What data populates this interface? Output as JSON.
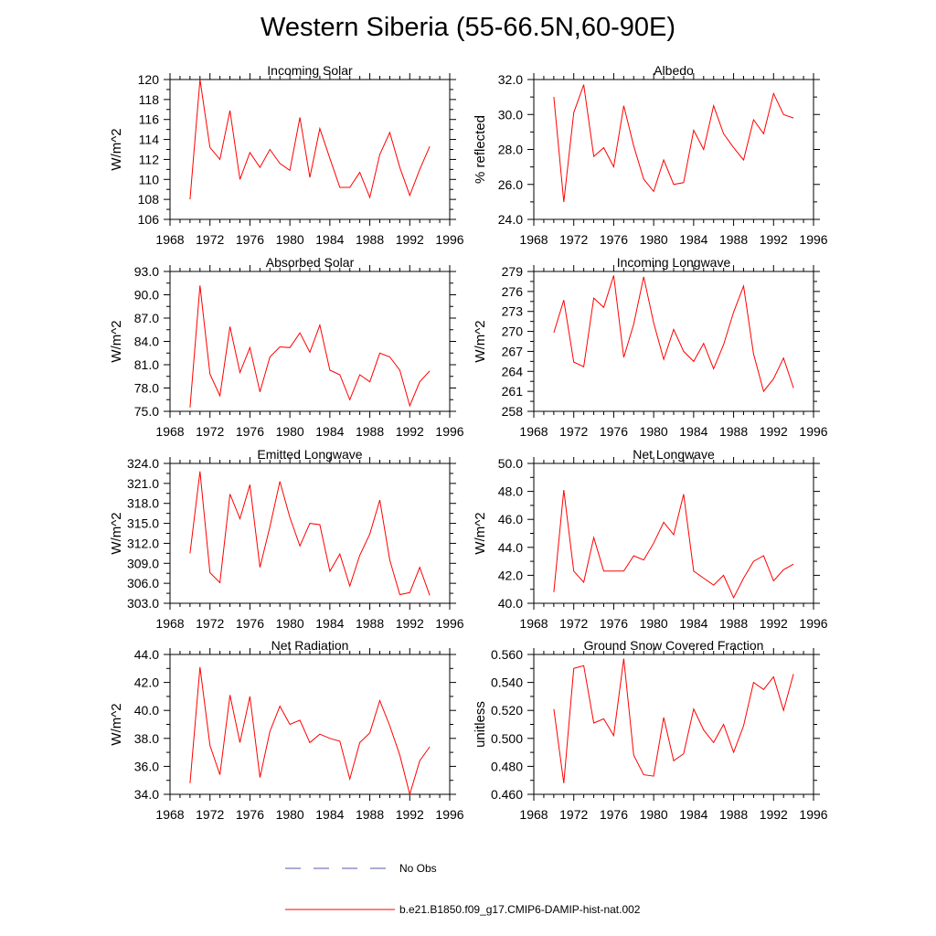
{
  "title": "Western Siberia (55-66.5N,60-90E)",
  "chart_data": [
    {
      "type": "line",
      "title": "Incoming Solar",
      "ylabel": "W/m^2",
      "xlim": [
        1968,
        1996
      ],
      "ylim": [
        106,
        120
      ],
      "xticks": [
        "1968",
        "1972",
        "1976",
        "1980",
        "1984",
        "1988",
        "1992",
        "1996"
      ],
      "yticks": [
        "106",
        "108",
        "110",
        "112",
        "114",
        "116",
        "118",
        "120"
      ],
      "x": [
        1970,
        1971,
        1972,
        1973,
        1974,
        1975,
        1976,
        1977,
        1978,
        1979,
        1980,
        1981,
        1982,
        1983,
        1984,
        1985,
        1986,
        1987,
        1988,
        1989,
        1990,
        1991,
        1992,
        1993,
        1994
      ],
      "series": [
        {
          "name": "b.e21.B1850.f09_g17.CMIP6-DAMIP-hist-nat.002",
          "values": [
            108.0,
            120.0,
            113.2,
            112.0,
            116.9,
            110.0,
            112.7,
            111.2,
            113.0,
            111.6,
            110.9,
            116.2,
            110.2,
            115.1,
            112.1,
            109.2,
            109.2,
            110.7,
            108.2,
            112.5,
            114.7,
            111.2,
            108.4,
            111.0,
            113.3
          ]
        }
      ]
    },
    {
      "type": "line",
      "title": "Albedo",
      "ylabel": "% reflected",
      "xlim": [
        1968,
        1996
      ],
      "ylim": [
        24,
        32
      ],
      "xticks": [
        "1968",
        "1972",
        "1976",
        "1980",
        "1984",
        "1988",
        "1992",
        "1996"
      ],
      "yticks": [
        "24.0",
        "26.0",
        "28.0",
        "30.0",
        "32.0"
      ],
      "x": [
        1970,
        1971,
        1972,
        1973,
        1974,
        1975,
        1976,
        1977,
        1978,
        1979,
        1980,
        1981,
        1982,
        1983,
        1984,
        1985,
        1986,
        1987,
        1988,
        1989,
        1990,
        1991,
        1992,
        1993,
        1994
      ],
      "series": [
        {
          "name": "b.e21.B1850.f09_g17.CMIP6-DAMIP-hist-nat.002",
          "values": [
            31.0,
            25.0,
            30.1,
            31.7,
            27.6,
            28.1,
            27.0,
            30.5,
            28.2,
            26.3,
            25.6,
            27.4,
            26.0,
            26.1,
            29.1,
            28.0,
            30.5,
            28.9,
            28.1,
            27.4,
            29.7,
            28.9,
            31.2,
            30.0,
            29.8
          ]
        }
      ]
    },
    {
      "type": "line",
      "title": "Absorbed Solar",
      "ylabel": "W/m^2",
      "xlim": [
        1968,
        1996
      ],
      "ylim": [
        75,
        93
      ],
      "xticks": [
        "1968",
        "1972",
        "1976",
        "1980",
        "1984",
        "1988",
        "1992",
        "1996"
      ],
      "yticks": [
        "75.0",
        "78.0",
        "81.0",
        "84.0",
        "87.0",
        "90.0",
        "93.0"
      ],
      "x": [
        1970,
        1971,
        1972,
        1973,
        1974,
        1975,
        1976,
        1977,
        1978,
        1979,
        1980,
        1981,
        1982,
        1983,
        1984,
        1985,
        1986,
        1987,
        1988,
        1989,
        1990,
        1991,
        1992,
        1993,
        1994
      ],
      "series": [
        {
          "name": "b.e21.B1850.f09_g17.CMIP6-DAMIP-hist-nat.002",
          "values": [
            75.5,
            91.2,
            79.8,
            77.0,
            85.9,
            80.0,
            83.2,
            77.5,
            82.0,
            83.3,
            83.2,
            85.1,
            82.6,
            86.1,
            80.3,
            79.7,
            76.5,
            79.7,
            78.8,
            82.5,
            82.0,
            80.3,
            75.7,
            78.8,
            80.2
          ]
        }
      ]
    },
    {
      "type": "line",
      "title": "Incoming Longwave",
      "ylabel": "W/m^2",
      "xlim": [
        1968,
        1996
      ],
      "ylim": [
        258,
        279
      ],
      "xticks": [
        "1968",
        "1972",
        "1976",
        "1980",
        "1984",
        "1988",
        "1992",
        "1996"
      ],
      "yticks": [
        "258",
        "261",
        "264",
        "267",
        "270",
        "273",
        "276",
        "279"
      ],
      "x": [
        1970,
        1971,
        1972,
        1973,
        1974,
        1975,
        1976,
        1977,
        1978,
        1979,
        1980,
        1981,
        1982,
        1983,
        1984,
        1985,
        1986,
        1987,
        1988,
        1989,
        1990,
        1991,
        1992,
        1993,
        1994
      ],
      "series": [
        {
          "name": "b.e21.B1850.f09_g17.CMIP6-DAMIP-hist-nat.002",
          "values": [
            269.8,
            274.7,
            265.4,
            264.7,
            275.0,
            273.6,
            278.4,
            266.1,
            271.1,
            278.2,
            271.3,
            265.8,
            270.3,
            267.0,
            265.5,
            268.2,
            264.4,
            268.0,
            272.9,
            276.8,
            266.6,
            261.0,
            262.9,
            266.0,
            261.5
          ]
        }
      ]
    },
    {
      "type": "line",
      "title": "Emitted Longwave",
      "ylabel": "W/m^2",
      "xlim": [
        1968,
        1996
      ],
      "ylim": [
        303,
        324
      ],
      "xticks": [
        "1968",
        "1972",
        "1976",
        "1980",
        "1984",
        "1988",
        "1992",
        "1996"
      ],
      "yticks": [
        "303.0",
        "306.0",
        "309.0",
        "312.0",
        "315.0",
        "318.0",
        "321.0",
        "324.0"
      ],
      "x": [
        1970,
        1971,
        1972,
        1973,
        1974,
        1975,
        1976,
        1977,
        1978,
        1979,
        1980,
        1981,
        1982,
        1983,
        1984,
        1985,
        1986,
        1987,
        1988,
        1989,
        1990,
        1991,
        1992,
        1993,
        1994
      ],
      "series": [
        {
          "name": "b.e21.B1850.f09_g17.CMIP6-DAMIP-hist-nat.002",
          "values": [
            310.5,
            322.8,
            307.6,
            306.1,
            319.4,
            315.7,
            320.8,
            308.4,
            314.5,
            321.3,
            315.9,
            311.6,
            315.0,
            314.8,
            307.8,
            310.4,
            305.6,
            310.2,
            313.4,
            318.5,
            309.5,
            304.3,
            304.6,
            308.4,
            304.2
          ]
        }
      ]
    },
    {
      "type": "line",
      "title": "Net Longwave",
      "ylabel": "W/m^2",
      "xlim": [
        1968,
        1996
      ],
      "ylim": [
        40,
        50
      ],
      "xticks": [
        "1968",
        "1972",
        "1976",
        "1980",
        "1984",
        "1988",
        "1992",
        "1996"
      ],
      "yticks": [
        "40.0",
        "42.0",
        "44.0",
        "46.0",
        "48.0",
        "50.0"
      ],
      "x": [
        1970,
        1971,
        1972,
        1973,
        1974,
        1975,
        1976,
        1977,
        1978,
        1979,
        1980,
        1981,
        1982,
        1983,
        1984,
        1985,
        1986,
        1987,
        1988,
        1989,
        1990,
        1991,
        1992,
        1993,
        1994
      ],
      "series": [
        {
          "name": "b.e21.B1850.f09_g17.CMIP6-DAMIP-hist-nat.002",
          "values": [
            40.8,
            48.1,
            42.3,
            41.5,
            44.7,
            42.3,
            42.3,
            42.3,
            43.4,
            43.1,
            44.3,
            45.8,
            44.9,
            47.8,
            42.3,
            41.8,
            41.3,
            42.0,
            40.4,
            41.8,
            43.0,
            43.4,
            41.6,
            42.4,
            42.8
          ]
        }
      ]
    },
    {
      "type": "line",
      "title": "Net Radiation",
      "ylabel": "W/m^2",
      "xlim": [
        1968,
        1996
      ],
      "ylim": [
        34,
        44
      ],
      "xticks": [
        "1968",
        "1972",
        "1976",
        "1980",
        "1984",
        "1988",
        "1992",
        "1996"
      ],
      "yticks": [
        "34.0",
        "36.0",
        "38.0",
        "40.0",
        "42.0",
        "44.0"
      ],
      "x": [
        1970,
        1971,
        1972,
        1973,
        1974,
        1975,
        1976,
        1977,
        1978,
        1979,
        1980,
        1981,
        1982,
        1983,
        1984,
        1985,
        1986,
        1987,
        1988,
        1989,
        1990,
        1991,
        1992,
        1993,
        1994
      ],
      "series": [
        {
          "name": "b.e21.B1850.f09_g17.CMIP6-DAMIP-hist-nat.002",
          "values": [
            34.8,
            43.1,
            37.5,
            35.4,
            41.1,
            37.7,
            41.0,
            35.2,
            38.5,
            40.3,
            39.0,
            39.3,
            37.7,
            38.3,
            38.0,
            37.8,
            35.1,
            37.7,
            38.4,
            40.7,
            38.9,
            36.8,
            34.0,
            36.4,
            37.4
          ]
        }
      ]
    },
    {
      "type": "line",
      "title": "Ground Snow Covered Fraction",
      "ylabel": "unitless",
      "xlim": [
        1968,
        1996
      ],
      "ylim": [
        0.46,
        0.56
      ],
      "xticks": [
        "1968",
        "1972",
        "1976",
        "1980",
        "1984",
        "1988",
        "1992",
        "1996"
      ],
      "yticks": [
        "0.460",
        "0.480",
        "0.500",
        "0.520",
        "0.540",
        "0.560"
      ],
      "x": [
        1970,
        1971,
        1972,
        1973,
        1974,
        1975,
        1976,
        1977,
        1978,
        1979,
        1980,
        1981,
        1982,
        1983,
        1984,
        1985,
        1986,
        1987,
        1988,
        1989,
        1990,
        1991,
        1992,
        1993,
        1994
      ],
      "series": [
        {
          "name": "b.e21.B1850.f09_g17.CMIP6-DAMIP-hist-nat.002",
          "values": [
            0.521,
            0.468,
            0.55,
            0.552,
            0.511,
            0.514,
            0.502,
            0.557,
            0.488,
            0.474,
            0.473,
            0.515,
            0.484,
            0.489,
            0.521,
            0.506,
            0.497,
            0.51,
            0.49,
            0.509,
            0.54,
            0.535,
            0.544,
            0.52,
            0.546
          ]
        }
      ]
    }
  ],
  "legend": {
    "items": [
      {
        "label": "No Obs",
        "style": "dashed",
        "color": "#5a5aa8"
      },
      {
        "label": "b.e21.B1850.f09_g17.CMIP6-DAMIP-hist-nat.002",
        "style": "solid",
        "color": "#ff0000"
      }
    ]
  }
}
